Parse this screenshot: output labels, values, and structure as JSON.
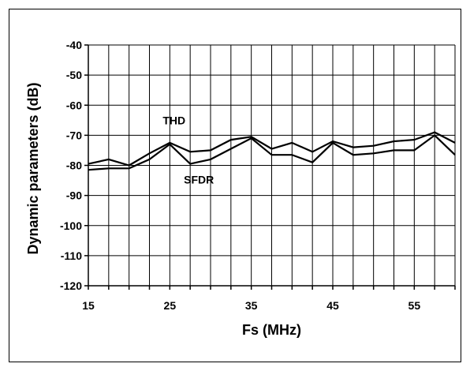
{
  "chart_data": {
    "type": "line",
    "title": "",
    "xlabel": "Fs (MHz)",
    "ylabel": "Dynamic parameters (dB)",
    "xlim": [
      15,
      60
    ],
    "ylim": [
      -120,
      -40
    ],
    "x_ticks": [
      15,
      25,
      35,
      45,
      55
    ],
    "x_tick_labels": [
      "15",
      "25",
      "35",
      "45",
      "55"
    ],
    "y_ticks": [
      -40,
      -50,
      -60,
      -70,
      -80,
      -90,
      -100,
      -110,
      -120
    ],
    "y_tick_labels": [
      "-40",
      "-50",
      "-60",
      "-70",
      "-80",
      "-90",
      "-100",
      "-110",
      "-120"
    ],
    "x_minor_step": 2.5,
    "grid": true,
    "legend": "none",
    "annotations": [
      {
        "text": "THD",
        "series": "THD"
      },
      {
        "text": "SFDR",
        "series": "SFDR"
      }
    ],
    "series": [
      {
        "name": "THD",
        "color": "#000000",
        "x": [
          15,
          17.5,
          20,
          22.5,
          25,
          27.5,
          30,
          32.5,
          35,
          37.5,
          40,
          42.5,
          45,
          47.5,
          50,
          52.5,
          55,
          57.5,
          60
        ],
        "values": [
          -79.5,
          -78,
          -80,
          -76,
          -72.5,
          -75.5,
          -75,
          -71.5,
          -70.5,
          -74.5,
          -72.5,
          -75.5,
          -72,
          -74,
          -73.5,
          -72,
          -71.5,
          -69,
          -72.5
        ]
      },
      {
        "name": "SFDR",
        "color": "#000000",
        "x": [
          15,
          17.5,
          20,
          22.5,
          25,
          27.5,
          30,
          32.5,
          35,
          37.5,
          40,
          42.5,
          45,
          47.5,
          50,
          52.5,
          55,
          57.5,
          60
        ],
        "values": [
          -81.5,
          -81,
          -81,
          -78,
          -73,
          -79.5,
          -78,
          -74.5,
          -71,
          -76.5,
          -76.5,
          -79,
          -72.5,
          -76.5,
          -76,
          -75,
          -75,
          -70,
          -76.5
        ]
      }
    ]
  }
}
